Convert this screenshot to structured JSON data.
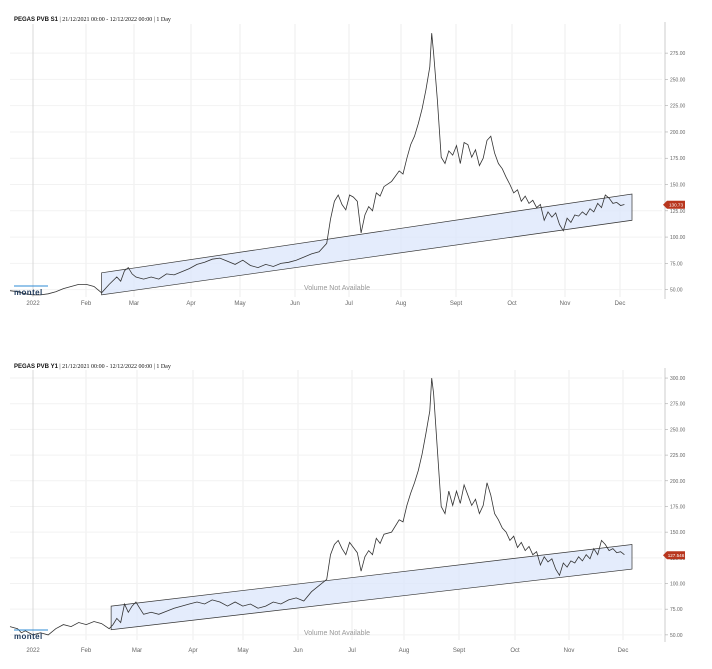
{
  "chart_data": [
    {
      "type": "line",
      "title_name": "PEGAS PVB S1",
      "title_range": "21/12/2021 00:00 - 12/12/2022 00:00",
      "title_interval": "1 Day",
      "x_ticks": [
        "2022",
        "Feb",
        "Mar",
        "Apr",
        "May",
        "Jun",
        "Jul",
        "Aug",
        "Sept",
        "Oct",
        "Nov",
        "Dec"
      ],
      "y_ticks": [
        "50.00",
        "75.00",
        "100.00",
        "125.00",
        "150.00",
        "175.00",
        "200.00",
        "225.00",
        "250.00",
        "275.00"
      ],
      "ylim": [
        43,
        297
      ],
      "last_value_label": "130.73",
      "last_value": 130.73,
      "watermark": "Volume Not Available",
      "logo": "montel",
      "series_color": "#333333",
      "channel_color": "#dbe6fb",
      "channel_upper": [
        [
          48,
          66
        ],
        [
          326,
          141
        ]
      ],
      "channel_lower": [
        [
          48,
          45
        ],
        [
          326,
          116
        ]
      ],
      "points": [
        [
          0,
          49
        ],
        [
          4,
          48
        ],
        [
          8,
          46
        ],
        [
          12,
          45
        ],
        [
          16,
          45
        ],
        [
          20,
          46
        ],
        [
          24,
          48
        ],
        [
          28,
          51
        ],
        [
          32,
          53
        ],
        [
          36,
          55
        ],
        [
          40,
          55
        ],
        [
          44,
          53
        ],
        [
          48,
          47
        ],
        [
          52,
          55
        ],
        [
          56,
          62
        ],
        [
          58,
          58
        ],
        [
          60,
          68
        ],
        [
          62,
          71
        ],
        [
          64,
          65
        ],
        [
          66,
          62
        ],
        [
          70,
          60
        ],
        [
          74,
          62
        ],
        [
          78,
          60
        ],
        [
          82,
          65
        ],
        [
          86,
          64
        ],
        [
          90,
          67
        ],
        [
          94,
          70
        ],
        [
          98,
          74
        ],
        [
          102,
          76
        ],
        [
          106,
          79
        ],
        [
          110,
          80
        ],
        [
          114,
          77
        ],
        [
          118,
          74
        ],
        [
          122,
          78
        ],
        [
          126,
          73
        ],
        [
          130,
          71
        ],
        [
          134,
          74
        ],
        [
          138,
          72
        ],
        [
          142,
          75
        ],
        [
          146,
          76
        ],
        [
          150,
          78
        ],
        [
          154,
          81
        ],
        [
          158,
          84
        ],
        [
          162,
          86
        ],
        [
          166,
          94
        ],
        [
          168,
          117
        ],
        [
          170,
          134
        ],
        [
          172,
          140
        ],
        [
          174,
          131
        ],
        [
          176,
          126
        ],
        [
          178,
          140
        ],
        [
          180,
          138
        ],
        [
          182,
          134
        ],
        [
          184,
          104
        ],
        [
          186,
          121
        ],
        [
          188,
          129
        ],
        [
          190,
          125
        ],
        [
          192,
          142
        ],
        [
          194,
          139
        ],
        [
          196,
          148
        ],
        [
          200,
          153
        ],
        [
          204,
          163
        ],
        [
          206,
          160
        ],
        [
          208,
          175
        ],
        [
          210,
          188
        ],
        [
          212,
          196
        ],
        [
          214,
          208
        ],
        [
          216,
          222
        ],
        [
          218,
          240
        ],
        [
          220,
          262
        ],
        [
          221,
          294
        ],
        [
          222,
          275
        ],
        [
          224,
          230
        ],
        [
          226,
          176
        ],
        [
          228,
          170
        ],
        [
          230,
          182
        ],
        [
          232,
          178
        ],
        [
          234,
          187
        ],
        [
          236,
          170
        ],
        [
          238,
          190
        ],
        [
          240,
          188
        ],
        [
          242,
          176
        ],
        [
          244,
          183
        ],
        [
          246,
          168
        ],
        [
          248,
          175
        ],
        [
          250,
          192
        ],
        [
          252,
          196
        ],
        [
          254,
          180
        ],
        [
          256,
          170
        ],
        [
          258,
          165
        ],
        [
          260,
          157
        ],
        [
          262,
          150
        ],
        [
          264,
          142
        ],
        [
          266,
          145
        ],
        [
          268,
          134
        ],
        [
          270,
          139
        ],
        [
          272,
          132
        ],
        [
          274,
          135
        ],
        [
          276,
          128
        ],
        [
          278,
          131
        ],
        [
          280,
          116
        ],
        [
          282,
          124
        ],
        [
          284,
          119
        ],
        [
          286,
          123
        ],
        [
          288,
          112
        ],
        [
          290,
          106
        ],
        [
          292,
          118
        ],
        [
          294,
          114
        ],
        [
          296,
          121
        ],
        [
          298,
          120
        ],
        [
          300,
          124
        ],
        [
          302,
          121
        ],
        [
          304,
          127
        ],
        [
          306,
          124
        ],
        [
          308,
          132
        ],
        [
          310,
          128
        ],
        [
          312,
          140
        ],
        [
          314,
          137
        ],
        [
          316,
          132
        ],
        [
          318,
          133
        ],
        [
          320,
          130
        ],
        [
          322,
          131
        ]
      ]
    },
    {
      "type": "line",
      "title_name": "PEGAS PVB Y1",
      "title_range": "21/12/2021 00:00 - 12/12/2022 00:00",
      "title_interval": "1 Day",
      "x_ticks": [
        "2022",
        "Feb",
        "Mar",
        "Apr",
        "May",
        "Jun",
        "Jul",
        "Aug",
        "Sept",
        "Oct",
        "Nov",
        "Dec"
      ],
      "y_ticks": [
        "50.00",
        "75.00",
        "100.00",
        "125.00",
        "150.00",
        "175.00",
        "200.00",
        "225.00",
        "250.00",
        "275.00",
        "300.00"
      ],
      "ylim": [
        45,
        302
      ],
      "last_value_label": "127.546",
      "last_value": 127.546,
      "watermark": "Volume Not Available",
      "logo": "montel",
      "series_color": "#333333",
      "channel_color": "#dbe6fb",
      "channel_upper": [
        [
          53,
          78
        ],
        [
          326,
          138
        ]
      ],
      "channel_lower": [
        [
          53,
          55
        ],
        [
          326,
          114
        ]
      ],
      "points": [
        [
          0,
          58
        ],
        [
          4,
          56
        ],
        [
          6,
          52
        ],
        [
          8,
          54
        ],
        [
          12,
          50
        ],
        [
          16,
          52
        ],
        [
          20,
          50
        ],
        [
          24,
          56
        ],
        [
          28,
          60
        ],
        [
          32,
          58
        ],
        [
          36,
          62
        ],
        [
          40,
          60
        ],
        [
          44,
          63
        ],
        [
          48,
          61
        ],
        [
          52,
          56
        ],
        [
          54,
          60
        ],
        [
          56,
          66
        ],
        [
          58,
          62
        ],
        [
          60,
          80
        ],
        [
          62,
          72
        ],
        [
          64,
          78
        ],
        [
          66,
          82
        ],
        [
          68,
          76
        ],
        [
          70,
          70
        ],
        [
          74,
          72
        ],
        [
          78,
          70
        ],
        [
          82,
          73
        ],
        [
          86,
          76
        ],
        [
          90,
          78
        ],
        [
          94,
          80
        ],
        [
          98,
          82
        ],
        [
          102,
          80
        ],
        [
          106,
          84
        ],
        [
          110,
          82
        ],
        [
          114,
          78
        ],
        [
          118,
          82
        ],
        [
          122,
          78
        ],
        [
          126,
          80
        ],
        [
          130,
          76
        ],
        [
          134,
          78
        ],
        [
          138,
          82
        ],
        [
          142,
          80
        ],
        [
          146,
          84
        ],
        [
          150,
          86
        ],
        [
          154,
          83
        ],
        [
          158,
          92
        ],
        [
          162,
          98
        ],
        [
          166,
          104
        ],
        [
          168,
          128
        ],
        [
          170,
          138
        ],
        [
          172,
          142
        ],
        [
          174,
          134
        ],
        [
          176,
          128
        ],
        [
          178,
          140
        ],
        [
          180,
          135
        ],
        [
          182,
          130
        ],
        [
          184,
          112
        ],
        [
          186,
          126
        ],
        [
          188,
          132
        ],
        [
          190,
          128
        ],
        [
          192,
          144
        ],
        [
          194,
          139
        ],
        [
          196,
          148
        ],
        [
          200,
          150
        ],
        [
          204,
          162
        ],
        [
          206,
          160
        ],
        [
          208,
          176
        ],
        [
          210,
          188
        ],
        [
          212,
          198
        ],
        [
          214,
          210
        ],
        [
          216,
          226
        ],
        [
          218,
          246
        ],
        [
          220,
          268
        ],
        [
          221,
          300
        ],
        [
          222,
          285
        ],
        [
          224,
          230
        ],
        [
          226,
          175
        ],
        [
          228,
          168
        ],
        [
          230,
          190
        ],
        [
          232,
          176
        ],
        [
          234,
          190
        ],
        [
          236,
          178
        ],
        [
          238,
          196
        ],
        [
          240,
          186
        ],
        [
          242,
          176
        ],
        [
          244,
          182
        ],
        [
          246,
          168
        ],
        [
          248,
          176
        ],
        [
          250,
          198
        ],
        [
          252,
          186
        ],
        [
          254,
          168
        ],
        [
          256,
          162
        ],
        [
          258,
          154
        ],
        [
          260,
          150
        ],
        [
          262,
          142
        ],
        [
          264,
          146
        ],
        [
          266,
          135
        ],
        [
          268,
          140
        ],
        [
          270,
          132
        ],
        [
          272,
          136
        ],
        [
          274,
          128
        ],
        [
          276,
          131
        ],
        [
          278,
          118
        ],
        [
          280,
          126
        ],
        [
          282,
          121
        ],
        [
          284,
          124
        ],
        [
          286,
          114
        ],
        [
          288,
          108
        ],
        [
          290,
          120
        ],
        [
          292,
          116
        ],
        [
          294,
          122
        ],
        [
          296,
          120
        ],
        [
          298,
          126
        ],
        [
          300,
          122
        ],
        [
          302,
          128
        ],
        [
          304,
          124
        ],
        [
          306,
          134
        ],
        [
          308,
          128
        ],
        [
          310,
          142
        ],
        [
          312,
          138
        ],
        [
          314,
          132
        ],
        [
          316,
          134
        ],
        [
          318,
          130
        ],
        [
          320,
          131
        ],
        [
          322,
          128
        ]
      ]
    }
  ]
}
